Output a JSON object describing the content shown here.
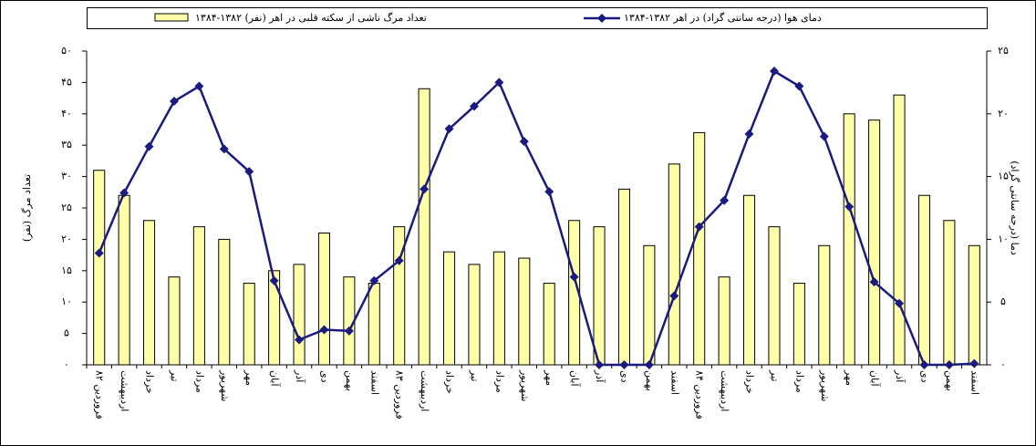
{
  "chart_data": {
    "type": "combo",
    "categories": [
      "فروردین ۸۲",
      "اردیبهشت",
      "خرداد",
      "تیر",
      "مرداد",
      "شهریور",
      "مهر",
      "آبان",
      "آذر",
      "دی",
      "بهمن",
      "اسفند",
      "فروردین ۸۳",
      "اردیبهشت",
      "خرداد",
      "تیر",
      "مرداد",
      "شهریور",
      "مهر",
      "آبان",
      "آذر",
      "دی",
      "بهمن",
      "اسفند",
      "فروردین ۸۴",
      "اردیبهشت",
      "خرداد",
      "تیر",
      "مرداد",
      "شهریور",
      "مهر",
      "آبان",
      "آذر",
      "دی",
      "بهمن",
      "اسفند"
    ],
    "series": [
      {
        "name": "تعداد مرگ ناشی از سکته قلبی در اهر (نفر) ۱۳۸۲-۱۳۸۴",
        "type": "bar",
        "color": "#ffffaa",
        "values": [
          31,
          27,
          23,
          14,
          22,
          20,
          13,
          15,
          16,
          21,
          14,
          13,
          22,
          44,
          18,
          16,
          18,
          17,
          13,
          23,
          22,
          28,
          19,
          32,
          37,
          14,
          27,
          22,
          13,
          19,
          40,
          39,
          43,
          27,
          23,
          19
        ]
      },
      {
        "name": "دمای هوا (درجه سانتی گراد) در اهر ۱۳۸۲-۱۳۸۴",
        "type": "line",
        "axis": "y2",
        "color": "#1a1a80",
        "values": [
          8.9,
          13.7,
          17.4,
          21.0,
          22.2,
          17.2,
          15.4,
          6.7,
          2.0,
          2.8,
          2.7,
          6.7,
          8.3,
          14.0,
          18.8,
          20.6,
          22.5,
          17.8,
          13.8,
          7.0,
          0,
          0,
          0,
          5.5,
          11.0,
          13.1,
          18.4,
          23.4,
          22.2,
          18.2,
          12.6,
          6.6,
          4.9,
          0,
          0,
          0.1
        ]
      }
    ],
    "ylabel": "تعداد مرگ (نفر)",
    "y2label": "دما (درجه سانتی گراد)",
    "ylim": [
      0,
      50
    ],
    "yticks": [
      {
        "value": 0,
        "label": "۰"
      },
      {
        "value": 5,
        "label": "۵"
      },
      {
        "value": 10,
        "label": "۱۰"
      },
      {
        "value": 15,
        "label": "۱۵"
      },
      {
        "value": 20,
        "label": "۲۰"
      },
      {
        "value": 25,
        "label": "۲۵"
      },
      {
        "value": 30,
        "label": "۳۰"
      },
      {
        "value": 35,
        "label": "۳۵"
      },
      {
        "value": 40,
        "label": "۴۰"
      },
      {
        "value": 45,
        "label": "۴۵"
      },
      {
        "value": 50,
        "label": "۵۰"
      }
    ],
    "y2lim": [
      0,
      25
    ],
    "y2ticks": [
      {
        "value": 0,
        "label": "۰"
      },
      {
        "value": 5,
        "label": "۵"
      },
      {
        "value": 10,
        "label": "۱۰"
      },
      {
        "value": 15,
        "label": "۱۵"
      },
      {
        "value": 20,
        "label": "۲۰"
      },
      {
        "value": 25,
        "label": "۲۵"
      }
    ],
    "legend": "top"
  }
}
